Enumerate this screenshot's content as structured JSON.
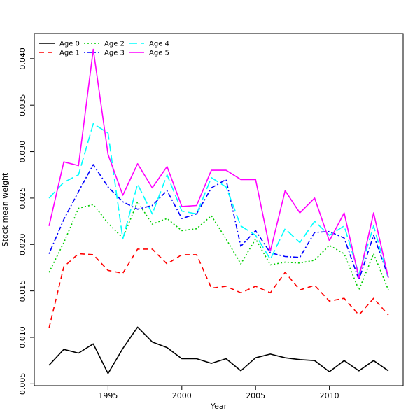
{
  "chart_data": {
    "type": "line",
    "xlabel": "Year",
    "ylabel": "Stock mean weight",
    "xlim": [
      1990,
      2015
    ],
    "ylim": [
      0.0048,
      0.0427
    ],
    "x_ticks": [
      1995,
      2000,
      2005,
      2010
    ],
    "y_ticks": [
      0.005,
      0.01,
      0.015,
      0.02,
      0.025,
      0.03,
      0.035,
      0.04
    ],
    "y_tick_labels": [
      "0.005",
      "0.010",
      "0.015",
      "0.020",
      "0.025",
      "0.030",
      "0.035",
      "0.040"
    ],
    "legend_position": "top-left",
    "x": [
      1991,
      1992,
      1993,
      1994,
      1995,
      1996,
      1997,
      1998,
      1999,
      2000,
      2001,
      2002,
      2003,
      2004,
      2005,
      2006,
      2007,
      2008,
      2009,
      2010,
      2011,
      2012,
      2013,
      2014
    ],
    "series": [
      {
        "name": "Age 0",
        "color": "#000000",
        "dash": "solid",
        "values": [
          0.007,
          0.0087,
          0.0083,
          0.0093,
          0.0061,
          0.0088,
          0.0111,
          0.0095,
          0.0089,
          0.0077,
          0.0077,
          0.0072,
          0.0077,
          0.0064,
          0.0078,
          0.0082,
          0.0078,
          0.0076,
          0.0075,
          0.0063,
          0.0075,
          0.0064,
          0.0075,
          0.0064
        ]
      },
      {
        "name": "Age 1",
        "color": "#ff0000",
        "dash": "dashed",
        "values": [
          0.011,
          0.0176,
          0.019,
          0.0189,
          0.0172,
          0.0169,
          0.0195,
          0.0195,
          0.0179,
          0.0189,
          0.0189,
          0.0153,
          0.0155,
          0.0148,
          0.0155,
          0.0148,
          0.017,
          0.0151,
          0.0156,
          0.0139,
          0.0142,
          0.0124,
          0.0142,
          0.0124
        ]
      },
      {
        "name": "Age 2",
        "color": "#00cd00",
        "dash": "dotted",
        "values": [
          0.017,
          0.0202,
          0.0239,
          0.0243,
          0.0223,
          0.0207,
          0.0246,
          0.0222,
          0.0228,
          0.0215,
          0.0217,
          0.0231,
          0.0206,
          0.0179,
          0.0206,
          0.0178,
          0.0181,
          0.018,
          0.0183,
          0.0199,
          0.019,
          0.0151,
          0.019,
          0.0151
        ]
      },
      {
        "name": "Age 3",
        "color": "#0000ff",
        "dash": "dotdash",
        "values": [
          0.019,
          0.0227,
          0.0257,
          0.0286,
          0.0262,
          0.0246,
          0.0238,
          0.0242,
          0.0258,
          0.0228,
          0.0233,
          0.0261,
          0.027,
          0.0198,
          0.0215,
          0.0191,
          0.0187,
          0.0186,
          0.0213,
          0.0214,
          0.0207,
          0.0162,
          0.021,
          0.0165
        ]
      },
      {
        "name": "Age 4",
        "color": "#00ffff",
        "dash": "longdash",
        "values": [
          0.025,
          0.0267,
          0.0275,
          0.033,
          0.032,
          0.0206,
          0.0265,
          0.0233,
          0.0275,
          0.0236,
          0.0233,
          0.0272,
          0.0262,
          0.022,
          0.021,
          0.0184,
          0.0217,
          0.0202,
          0.0225,
          0.021,
          0.022,
          0.0168,
          0.022,
          0.0163
        ]
      },
      {
        "name": "Age 5",
        "color": "#ff00ff",
        "dash": "solid",
        "values": [
          0.022,
          0.0289,
          0.0285,
          0.041,
          0.0297,
          0.0253,
          0.0287,
          0.0261,
          0.0284,
          0.0241,
          0.0242,
          0.028,
          0.028,
          0.027,
          0.027,
          0.0193,
          0.0258,
          0.0234,
          0.025,
          0.0204,
          0.0234,
          0.0164,
          0.0234,
          0.0164
        ]
      }
    ]
  }
}
